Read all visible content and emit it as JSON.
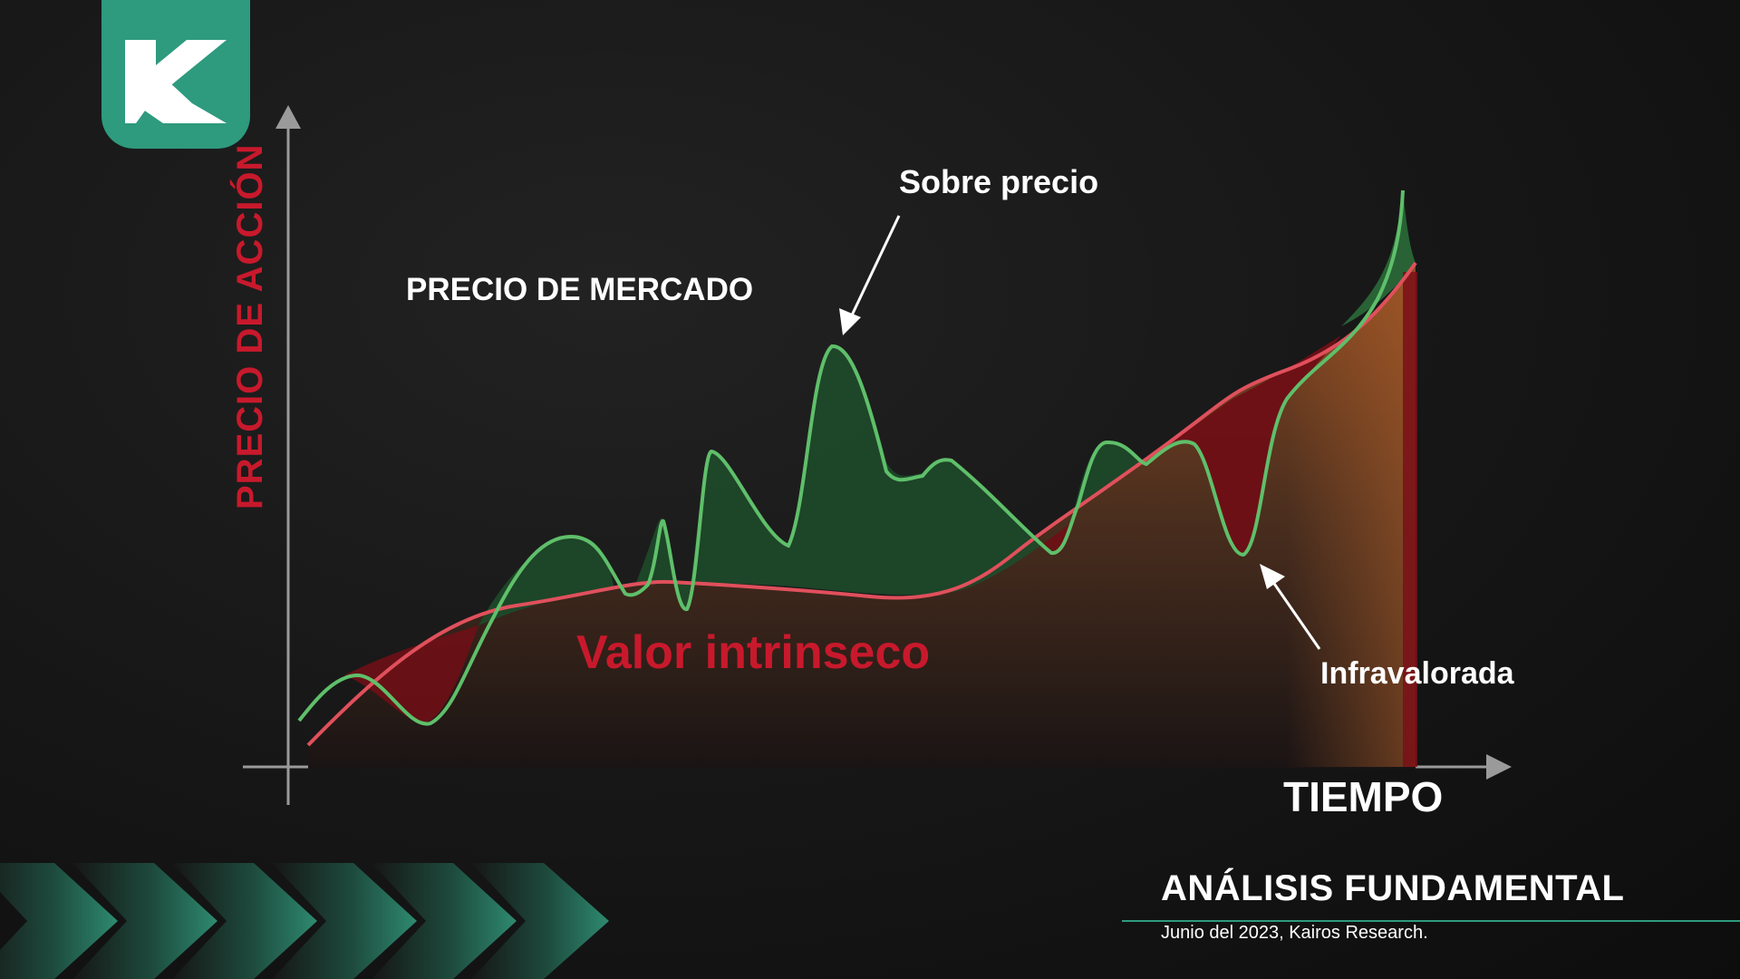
{
  "brand": {
    "logo_icon": "k-letter-logo-icon",
    "accent_color": "#2e9a7e"
  },
  "diagram": {
    "y_axis_label": "PRECIO DE ACCIÓN",
    "x_axis_label": "TIEMPO",
    "market_price_label": "PRECIO DE MERCADO",
    "intrinsic_value_label": "Valor intrinseco",
    "overpriced_label": "Sobre precio",
    "undervalued_label": "Infravalorada",
    "market_line_color": "#5fbf6a",
    "intrinsic_line_color": "#e0505c",
    "overpriced_fill_color": "#1e4a2a",
    "undervalued_fill_color": "#6e0f16"
  },
  "footer": {
    "title": "ANÁLISIS FUNDAMENTAL",
    "subtitle": "Junio del 2023, Kairos Research."
  }
}
